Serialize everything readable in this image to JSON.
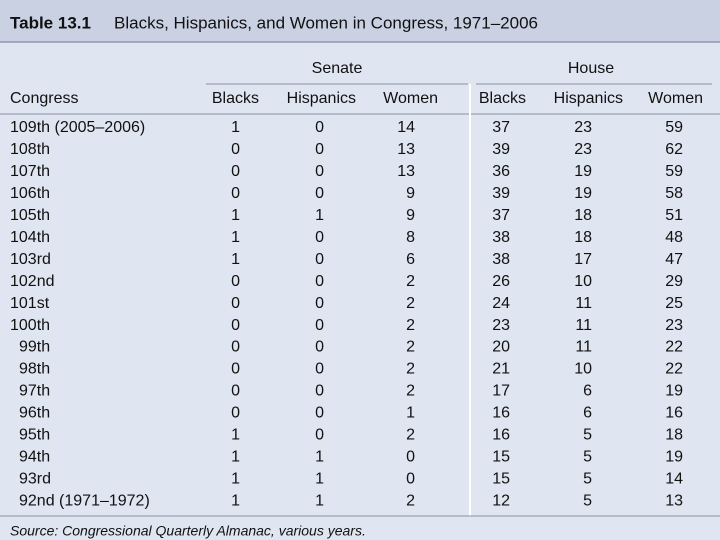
{
  "header": {
    "label": "Table 13.1",
    "title": "Blacks, Hispanics, and Women in Congress, 1971–2006"
  },
  "table": {
    "groups": [
      "Senate",
      "House"
    ],
    "columns": [
      "Congress",
      "Blacks",
      "Hispanics",
      "Women",
      "Blacks",
      "Hispanics",
      "Women"
    ],
    "rows": [
      [
        "109th (2005–2006)",
        1,
        0,
        14,
        37,
        23,
        59
      ],
      [
        "108th",
        0,
        0,
        13,
        39,
        23,
        62
      ],
      [
        "107th",
        0,
        0,
        13,
        36,
        19,
        59
      ],
      [
        "106th",
        0,
        0,
        9,
        39,
        19,
        58
      ],
      [
        "105th",
        1,
        1,
        9,
        37,
        18,
        51
      ],
      [
        "104th",
        1,
        0,
        8,
        38,
        18,
        48
      ],
      [
        "103rd",
        1,
        0,
        6,
        38,
        17,
        47
      ],
      [
        "102nd",
        0,
        0,
        2,
        26,
        10,
        29
      ],
      [
        "101st",
        0,
        0,
        2,
        24,
        11,
        25
      ],
      [
        "100th",
        0,
        0,
        2,
        23,
        11,
        23
      ],
      [
        "99th",
        0,
        0,
        2,
        20,
        11,
        22
      ],
      [
        "98th",
        0,
        0,
        2,
        21,
        10,
        22
      ],
      [
        "97th",
        0,
        0,
        2,
        17,
        6,
        19
      ],
      [
        "96th",
        0,
        0,
        1,
        16,
        6,
        16
      ],
      [
        "95th",
        1,
        0,
        2,
        16,
        5,
        18
      ],
      [
        "94th",
        1,
        1,
        0,
        15,
        5,
        19
      ],
      [
        "93rd",
        1,
        1,
        0,
        15,
        5,
        14
      ],
      [
        "92nd (1971–1972)",
        1,
        1,
        2,
        12,
        5,
        13
      ]
    ]
  },
  "source": "Source: Congressional Quarterly Almanac, various years."
}
